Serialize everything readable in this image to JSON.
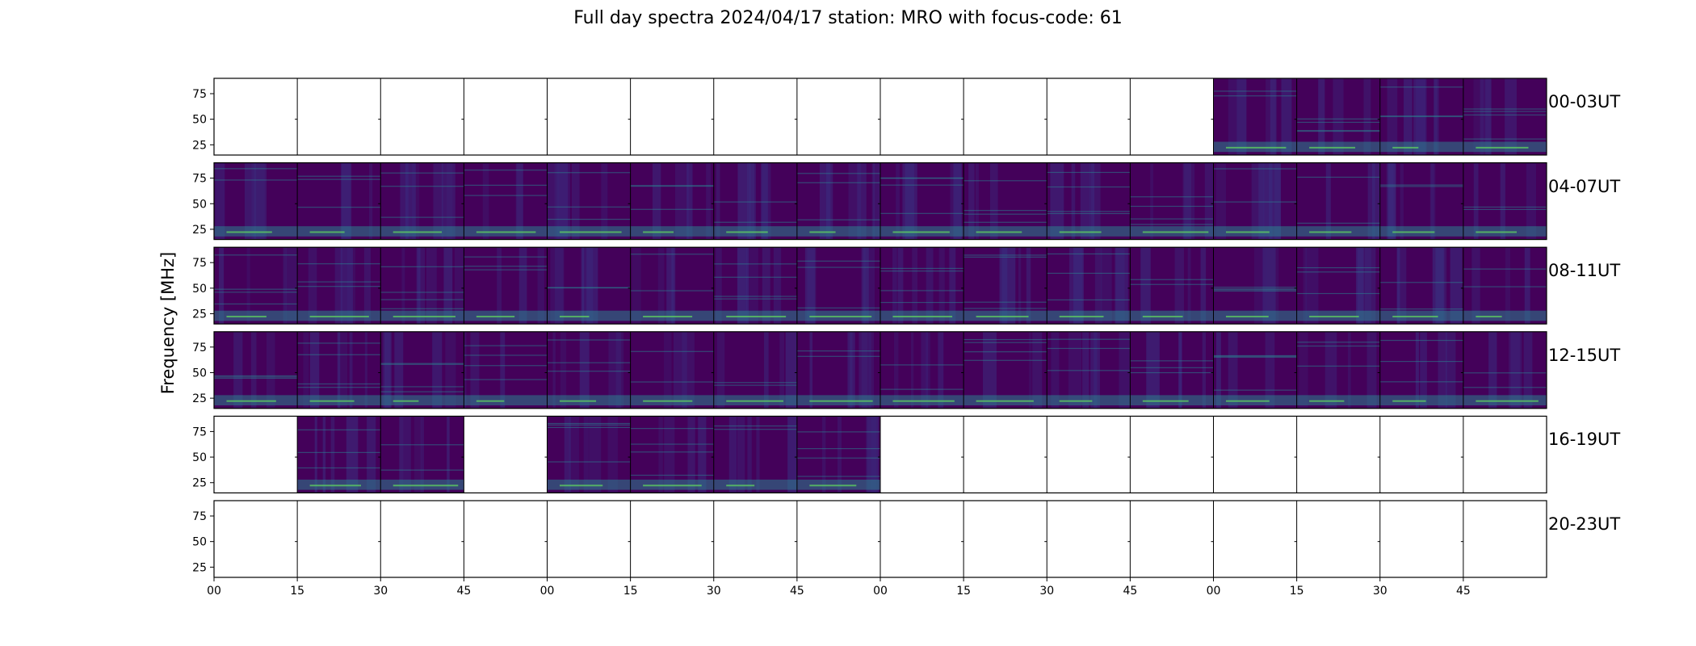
{
  "chart_data": {
    "type": "heatmap",
    "title": "Full day spectra 2024/04/17 station: MRO with focus-code: 61",
    "ylabel": "Frequency [MHz]",
    "xlabel": "",
    "colormap": "viridis",
    "ylim": [
      15,
      90
    ],
    "y_ticks": [
      25,
      50,
      75
    ],
    "x_ticks": [
      "00",
      "15",
      "30",
      "45",
      "00",
      "15",
      "30",
      "45",
      "00",
      "15",
      "30",
      "45",
      "00",
      "15",
      "30",
      "45"
    ],
    "rows": [
      {
        "label": "00-03UT",
        "available": [
          0,
          0,
          0,
          0,
          0,
          0,
          0,
          0,
          0,
          0,
          0,
          0,
          1,
          1,
          1,
          1
        ]
      },
      {
        "label": "04-07UT",
        "available": [
          1,
          1,
          1,
          1,
          1,
          1,
          1,
          1,
          1,
          1,
          1,
          1,
          1,
          1,
          1,
          1
        ]
      },
      {
        "label": "08-11UT",
        "available": [
          1,
          1,
          1,
          1,
          1,
          1,
          1,
          1,
          1,
          1,
          1,
          1,
          1,
          1,
          1,
          1
        ]
      },
      {
        "label": "12-15UT",
        "available": [
          1,
          1,
          1,
          1,
          1,
          1,
          1,
          1,
          1,
          1,
          1,
          1,
          1,
          1,
          1,
          1
        ]
      },
      {
        "label": "16-19UT",
        "available": [
          0,
          1,
          1,
          0,
          1,
          1,
          1,
          1,
          0,
          0,
          0,
          0,
          0,
          0,
          0,
          0
        ]
      },
      {
        "label": "20-23UT",
        "available": [
          0,
          0,
          0,
          0,
          0,
          0,
          0,
          0,
          0,
          0,
          0,
          0,
          0,
          0,
          0,
          0
        ]
      }
    ],
    "colors": {
      "background": "#44015a",
      "low": "#3b2a7d",
      "mid": "#2c7f8e",
      "high": "#5ec962",
      "peak": "#fde725"
    }
  }
}
